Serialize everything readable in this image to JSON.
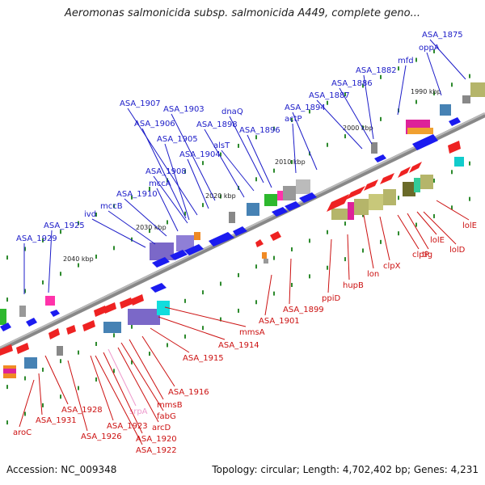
{
  "title": "Aeromonas salmonicida subsp. salmonicida A449, complete geno...",
  "accession": "Accession: NC_009348",
  "topology": "Topology: circular; Length: 4,702,402 bp; Genes: 4,231",
  "colors": {
    "top_label": "#1c1cc8",
    "bottom_label": "#cc1111",
    "pink_label": "#ee99cc",
    "backbone": "#777777",
    "tick": "#2d8a2d"
  },
  "kbp_marks": [
    "2040 kbp",
    "2030 kbp",
    "2020 kbp",
    "2010 kbp",
    "2000 kbp",
    "1990 kbp"
  ],
  "top_genes": [
    "ASA_1875",
    "oppA",
    "mfd",
    "ASA_1882",
    "ASA_1886",
    "ASA_1887",
    "ASA_1894",
    "actP",
    "dnaQ",
    "ASA_1896",
    "ASA_1898",
    "ASA_1903",
    "ASA_1907",
    "ASA_1906",
    "ASA_1905",
    "alsT",
    "ASA_1904",
    "ASA_1908",
    "mccA",
    "ASA_1910",
    "mccB",
    "ivd",
    "ASA_1925",
    "ASA_1929"
  ],
  "bottom_genes": [
    "lolE",
    "lolD",
    "lolE",
    "tig",
    "clpP",
    "clpX",
    "lon",
    "hupB",
    "ppiD",
    "ASA_1899",
    "ASA_1901",
    "mmsA",
    "ASA_1914",
    "ASA_1915",
    "ASA_1916",
    "mmsB",
    "fabG",
    "arcD",
    "srpA",
    "ASA_1920",
    "ASA_1922",
    "ASA_1923",
    "ASA_1926",
    "ASA_1928",
    "ASA_1931",
    "aroC"
  ]
}
